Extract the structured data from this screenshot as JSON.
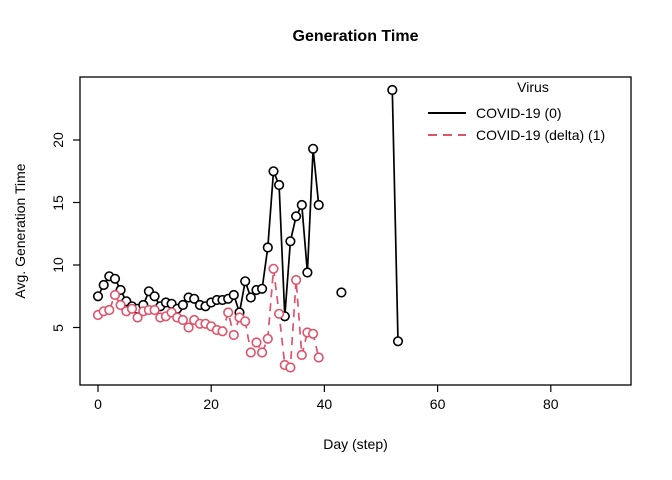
{
  "chart_data": {
    "type": "line",
    "title": "Generation Time",
    "xlabel": "Day (step)",
    "ylabel": "Avg. Generation Time",
    "x_ticks": [
      0,
      20,
      40,
      60,
      80
    ],
    "y_ticks": [
      5,
      10,
      15,
      20
    ],
    "xlim": [
      -3,
      94
    ],
    "ylim": [
      0.4,
      25
    ],
    "grid": false,
    "marker": "open-circle",
    "legend": {
      "title": "Virus",
      "position": "top-right",
      "entries": [
        {
          "label": "COVID-19 (0)",
          "color": "#000000",
          "linestyle": "solid"
        },
        {
          "label": "COVID-19 (delta) (1)",
          "color": "#DF536B",
          "linestyle": "dashed"
        }
      ]
    },
    "series": [
      {
        "name": "COVID-19 (0)",
        "color": "#000000",
        "linestyle": "solid",
        "segments": [
          {
            "x": [
              0,
              1,
              2,
              3,
              4,
              5,
              6,
              7,
              8,
              9,
              10,
              11,
              12,
              13,
              14,
              15,
              16,
              17,
              18,
              19,
              20,
              21,
              22,
              23,
              24,
              25,
              26,
              27,
              28,
              29,
              30,
              31,
              32,
              33,
              34,
              35,
              36,
              37,
              38,
              39
            ],
            "y": [
              7.5,
              8.4,
              9.1,
              8.9,
              8.0,
              7.1,
              6.7,
              6.5,
              6.8,
              7.9,
              7.5,
              6.7,
              7.0,
              6.9,
              6.5,
              6.8,
              7.4,
              7.3,
              6.8,
              6.7,
              7.0,
              7.2,
              7.2,
              7.3,
              7.6,
              6.2,
              8.7,
              7.4,
              8.0,
              8.1,
              11.4,
              17.5,
              16.4,
              5.9,
              11.9,
              13.9,
              14.8,
              9.4,
              19.3,
              14.8
            ]
          },
          {
            "x": [
              43
            ],
            "y": [
              7.8
            ]
          },
          {
            "x": [
              52,
              53
            ],
            "y": [
              24.0,
              3.9
            ]
          }
        ]
      },
      {
        "name": "COVID-19 (delta) (1)",
        "color": "#DF536B",
        "linestyle": "dashed",
        "segments": [
          {
            "x": [
              0,
              1,
              2,
              3,
              4,
              5,
              6,
              7,
              8,
              9,
              10,
              11,
              12,
              13,
              14,
              15,
              16,
              17,
              18,
              19,
              20,
              21,
              22,
              23,
              24,
              25,
              26,
              27,
              28,
              29,
              30,
              31,
              32,
              33,
              34,
              35,
              36,
              37,
              38,
              39
            ],
            "y": [
              6.0,
              6.3,
              6.4,
              7.6,
              6.8,
              6.3,
              6.5,
              5.8,
              6.3,
              6.4,
              6.4,
              5.8,
              5.9,
              6.2,
              5.8,
              5.6,
              5.0,
              5.6,
              5.3,
              5.3,
              5.1,
              4.8,
              4.7,
              6.2,
              4.4,
              5.8,
              5.5,
              3.0,
              3.8,
              3.0,
              4.1,
              9.7,
              6.1,
              2.0,
              1.8,
              8.8,
              2.8,
              4.6,
              4.5,
              2.6
            ]
          }
        ]
      }
    ]
  }
}
